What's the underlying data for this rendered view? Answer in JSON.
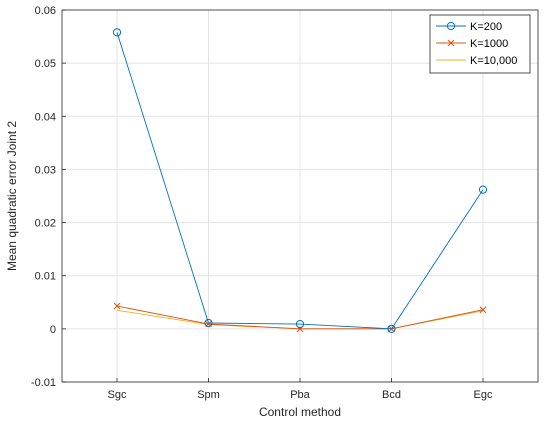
{
  "chart_data": {
    "type": "line",
    "categories": [
      "Sgc",
      "Spm",
      "Pba",
      "Bcd",
      "Egc"
    ],
    "xlabel": "Control method",
    "ylabel": "Mean quadratic error Joint 2",
    "ylim": [
      -0.01,
      0.06
    ],
    "yticks": [
      -0.01,
      0,
      0.01,
      0.02,
      0.03,
      0.04,
      0.05,
      0.06
    ],
    "ytick_labels": [
      "-0.01",
      "0",
      "0.01",
      "0.02",
      "0.03",
      "0.04",
      "0.05",
      "0.06"
    ],
    "grid": true,
    "legend_position": "top-right",
    "series": [
      {
        "name": "K=200",
        "values": [
          0.0558,
          0.0011,
          0.0009,
          0.0,
          0.0262
        ],
        "color": "#0072BD",
        "marker": "circle"
      },
      {
        "name": "K=1000",
        "values": [
          0.0043,
          0.0009,
          0.0,
          0.0,
          0.0036
        ],
        "color": "#D95319",
        "marker": "x"
      },
      {
        "name": "K=10,000",
        "values": [
          0.0035,
          0.0008,
          0.0,
          0.0,
          0.0034
        ],
        "color": "#EDB120",
        "marker": "none"
      }
    ]
  }
}
